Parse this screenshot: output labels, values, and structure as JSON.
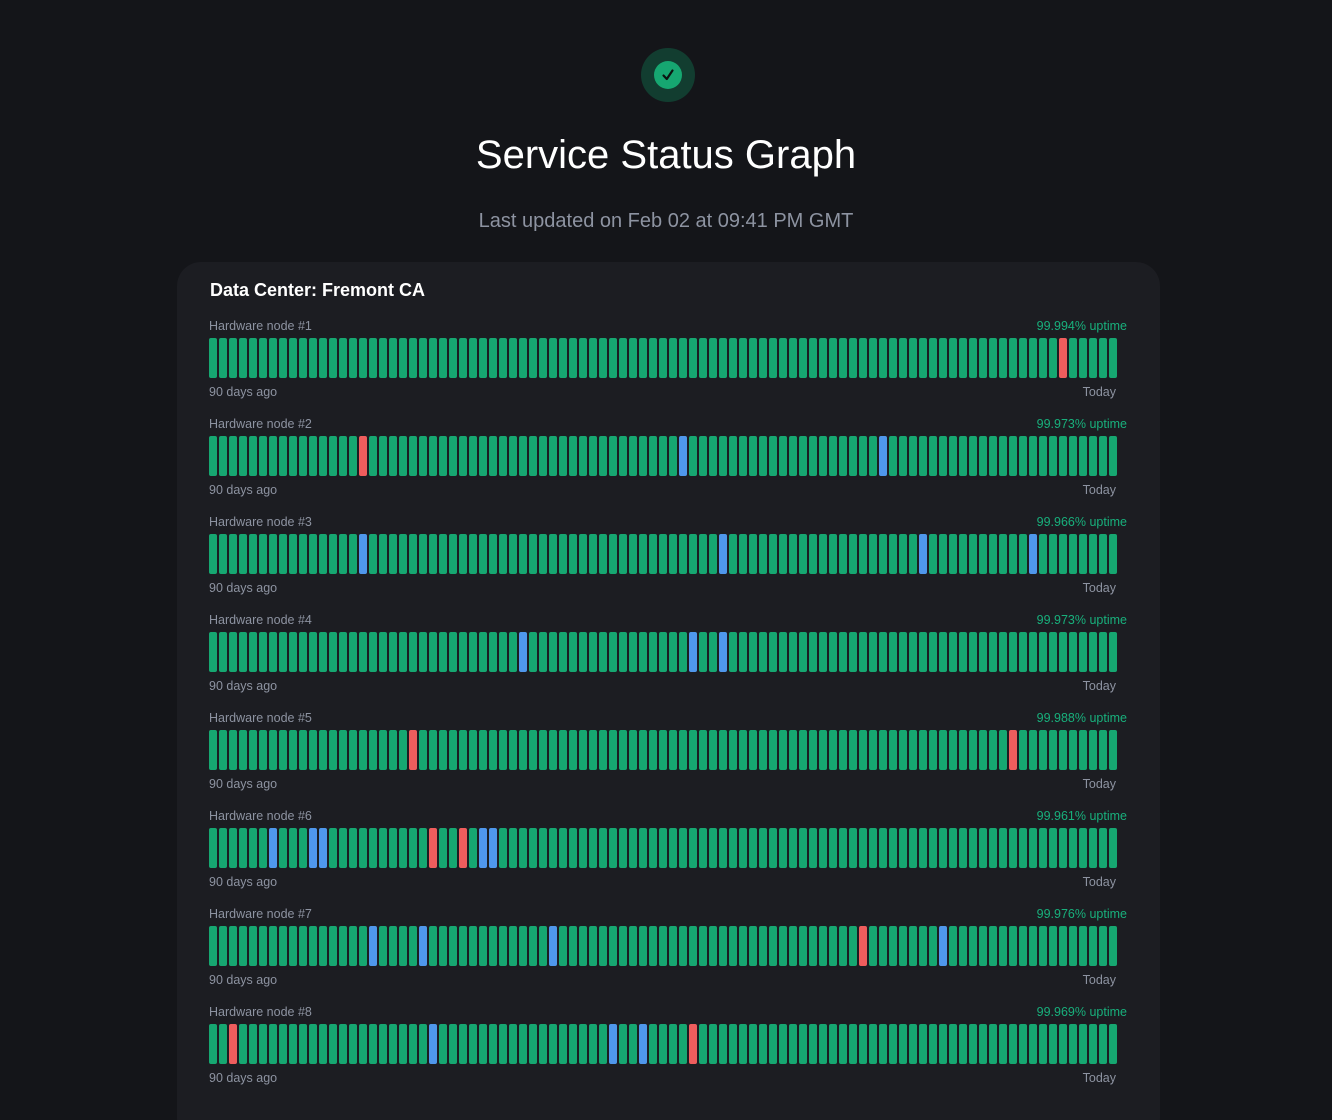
{
  "header": {
    "logo_icon": "check-icon",
    "title": "Service Status Graph",
    "last_updated": "Last updated on Feb 02 at 09:41 PM GMT"
  },
  "colors": {
    "operational": "#16a771",
    "maintenance": "#4f97ec",
    "outage": "#ef5d5d"
  },
  "datacenter": {
    "title": "Data Center: Fremont CA",
    "start_label": "90 days ago",
    "end_label": "Today",
    "day_count": 91,
    "nodes": [
      {
        "name": "Hardware node #1",
        "uptime": "99.994% uptime",
        "outage_days": [
          85
        ],
        "maintenance_days": []
      },
      {
        "name": "Hardware node #2",
        "uptime": "99.973% uptime",
        "outage_days": [
          15
        ],
        "maintenance_days": [
          47,
          67
        ]
      },
      {
        "name": "Hardware node #3",
        "uptime": "99.966% uptime",
        "outage_days": [],
        "maintenance_days": [
          15,
          51,
          71,
          82
        ]
      },
      {
        "name": "Hardware node #4",
        "uptime": "99.973% uptime",
        "outage_days": [],
        "maintenance_days": [
          31,
          48,
          51
        ]
      },
      {
        "name": "Hardware node #5",
        "uptime": "99.988% uptime",
        "outage_days": [
          20,
          80
        ],
        "maintenance_days": []
      },
      {
        "name": "Hardware node #6",
        "uptime": "99.961% uptime",
        "outage_days": [
          22,
          25
        ],
        "maintenance_days": [
          6,
          10,
          11,
          27,
          28
        ]
      },
      {
        "name": "Hardware node #7",
        "uptime": "99.976% uptime",
        "outage_days": [
          65
        ],
        "maintenance_days": [
          16,
          21,
          34,
          73
        ]
      },
      {
        "name": "Hardware node #8",
        "uptime": "99.969% uptime",
        "outage_days": [
          2,
          48
        ],
        "maintenance_days": [
          22,
          40,
          43
        ]
      }
    ]
  }
}
